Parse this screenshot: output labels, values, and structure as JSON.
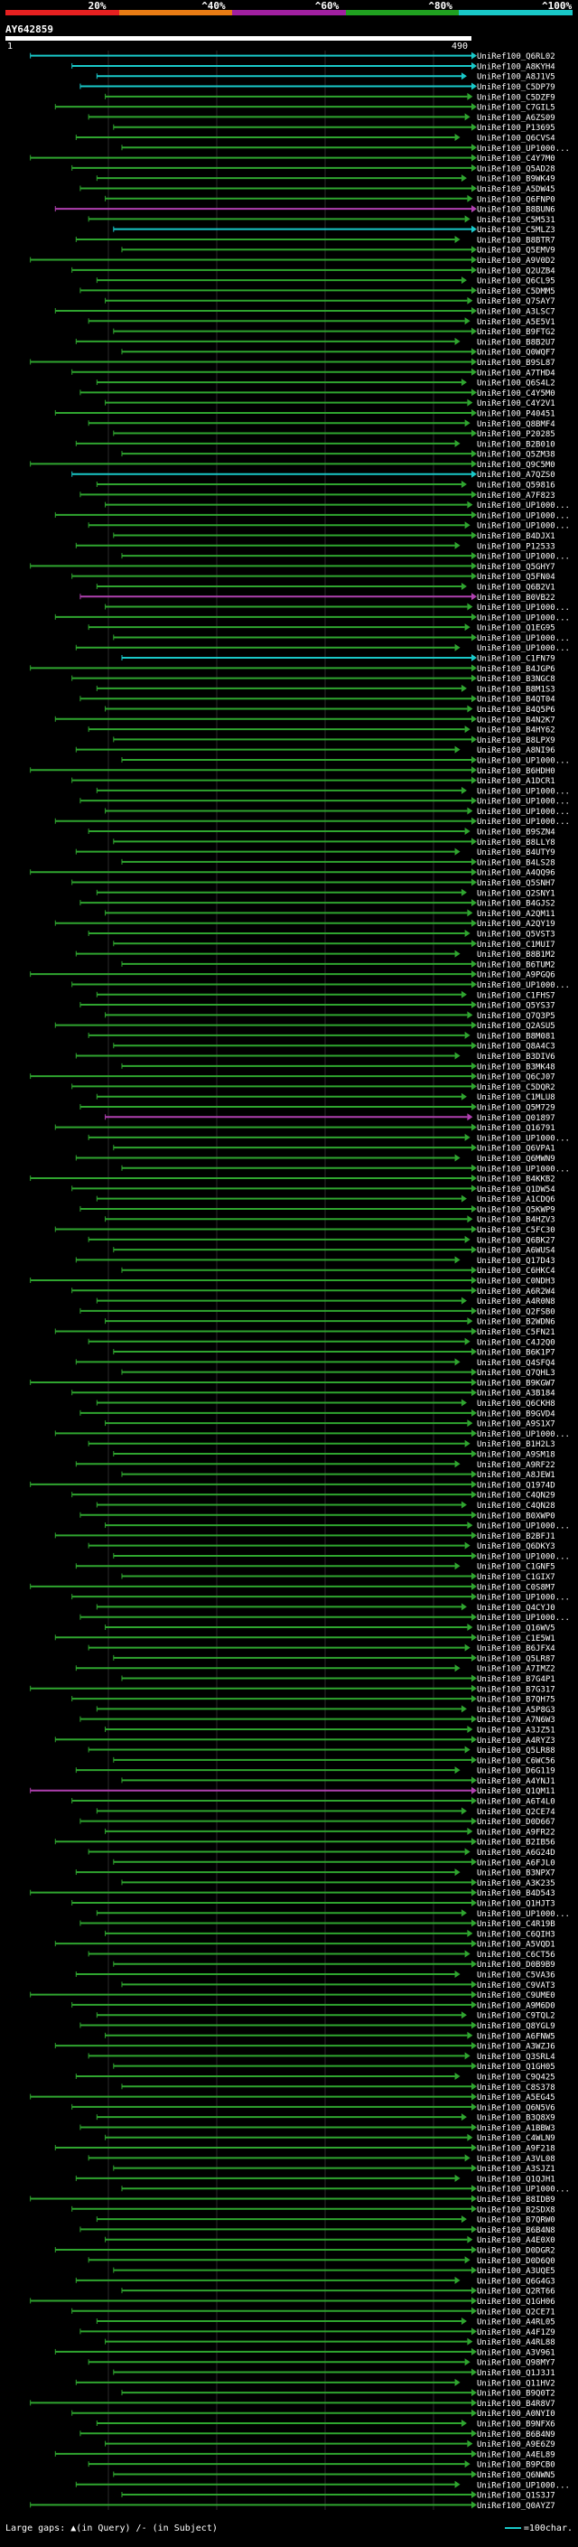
{
  "scale_bar": {
    "segments": [
      {
        "label": "20%",
        "color": "#e62020"
      },
      {
        "label": "^40%",
        "color": "#e87c14"
      },
      {
        "label": "^60%",
        "color": "#a020a0"
      },
      {
        "label": "^80%",
        "color": "#20a020"
      },
      {
        "label": "^100%",
        "color": "#19c8c8"
      }
    ]
  },
  "query": {
    "id": "AY642859",
    "start": "1",
    "end": "490"
  },
  "colors": {
    "cyan": "#19c8c8",
    "green": "#2fa52f",
    "magenta": "#b040b0",
    "label": "#ffffff",
    "gridline": "#2a2a2a"
  },
  "hits": [
    {
      "label": "UniRef100_Q6RL02",
      "c": "cyan"
    },
    {
      "label": "UniRef100_A8KYH4",
      "c": "cyan"
    },
    {
      "label": "UniRef100_A8J1V5",
      "c": "cyan"
    },
    {
      "label": "UniRef100_C5DP79",
      "c": "cyan"
    },
    {
      "label": "UniRef100_C5DZF9",
      "c": "green"
    },
    {
      "label": "UniRef100_C7GIL5",
      "c": "green"
    },
    {
      "label": "UniRef100_A6ZS09",
      "c": "green"
    },
    {
      "label": "UniRef100_P13695",
      "c": "green"
    },
    {
      "label": "UniRef100_Q6CVS4",
      "c": "green"
    },
    {
      "label": "UniRef100_UP1000...",
      "c": "green"
    },
    {
      "label": "UniRef100_C4Y7M0",
      "c": "green"
    },
    {
      "label": "UniRef100_Q5AD28",
      "c": "green"
    },
    {
      "label": "UniRef100_B9WK49",
      "c": "green"
    },
    {
      "label": "UniRef100_A5DW45",
      "c": "green"
    },
    {
      "label": "UniRef100_Q6FNP0",
      "c": "green"
    },
    {
      "label": "UniRef100_B8BUN6",
      "c": "magenta"
    },
    {
      "label": "UniRef100_C5M531",
      "c": "green"
    },
    {
      "label": "UniRef100_C5MLZ3",
      "c": "cyan"
    },
    {
      "label": "UniRef100_B8BTR7",
      "c": "green"
    },
    {
      "label": "UniRef100_Q5EMV9",
      "c": "green"
    },
    {
      "label": "UniRef100_A9V0D2",
      "c": "green"
    },
    {
      "label": "UniRef100_Q2UZB4",
      "c": "green"
    },
    {
      "label": "UniRef100_Q6CL95",
      "c": "green"
    },
    {
      "label": "UniRef100_C5DMM5",
      "c": "green"
    },
    {
      "label": "UniRef100_Q7SAY7",
      "c": "green"
    },
    {
      "label": "UniRef100_A3LSC7",
      "c": "green"
    },
    {
      "label": "UniRef100_A5E5V1",
      "c": "green"
    },
    {
      "label": "UniRef100_B9FTG2",
      "c": "green"
    },
    {
      "label": "UniRef100_B8B2U7",
      "c": "green"
    },
    {
      "label": "UniRef100_Q0WQF7",
      "c": "green"
    },
    {
      "label": "UniRef100_B9SL87",
      "c": "green"
    },
    {
      "label": "UniRef100_A7THD4",
      "c": "green"
    },
    {
      "label": "UniRef100_Q6S4L2",
      "c": "green"
    },
    {
      "label": "UniRef100_C4Y5M0",
      "c": "green"
    },
    {
      "label": "UniRef100_C4Y2V1",
      "c": "green"
    },
    {
      "label": "UniRef100_P40451",
      "c": "green"
    },
    {
      "label": "UniRef100_Q8BMF4",
      "c": "green"
    },
    {
      "label": "UniRef100_P20285",
      "c": "green"
    },
    {
      "label": "UniRef100_B2B010",
      "c": "green"
    },
    {
      "label": "UniRef100_Q5ZM38",
      "c": "green"
    },
    {
      "label": "UniRef100_Q9C5M0",
      "c": "green"
    },
    {
      "label": "UniRef100_A7QZS0",
      "c": "cyan"
    },
    {
      "label": "UniRef100_Q59816",
      "c": "green"
    },
    {
      "label": "UniRef100_A7F823",
      "c": "green"
    },
    {
      "label": "UniRef100_UP1000...",
      "c": "green"
    },
    {
      "label": "UniRef100_UP1000...",
      "c": "green"
    },
    {
      "label": "UniRef100_UP1000...",
      "c": "green"
    },
    {
      "label": "UniRef100_B4DJX1",
      "c": "green"
    },
    {
      "label": "UniRef100_P12533",
      "c": "green"
    },
    {
      "label": "UniRef100_UP1000...",
      "c": "green"
    },
    {
      "label": "UniRef100_Q5GHY7",
      "c": "green"
    },
    {
      "label": "UniRef100_Q5FN04",
      "c": "green"
    },
    {
      "label": "UniRef100_Q6B2V1",
      "c": "green"
    },
    {
      "label": "UniRef100_B0VB22",
      "c": "magenta"
    },
    {
      "label": "UniRef100_UP1000...",
      "c": "green"
    },
    {
      "label": "UniRef100_UP1000...",
      "c": "green"
    },
    {
      "label": "UniRef100_Q1EG95",
      "c": "green"
    },
    {
      "label": "UniRef100_UP1000...",
      "c": "green"
    },
    {
      "label": "UniRef100_UP1000...",
      "c": "green"
    },
    {
      "label": "UniRef100_C1FN79",
      "c": "cyan"
    },
    {
      "label": "UniRef100_B4JGP6",
      "c": "green"
    },
    {
      "label": "UniRef100_B3NGC8",
      "c": "green"
    },
    {
      "label": "UniRef100_B8M1S3",
      "c": "green"
    },
    {
      "label": "UniRef100_B4QT04",
      "c": "green"
    },
    {
      "label": "UniRef100_B4Q5P6",
      "c": "green"
    },
    {
      "label": "UniRef100_B4N2K7",
      "c": "green"
    },
    {
      "label": "UniRef100_B4HY62",
      "c": "green"
    },
    {
      "label": "UniRef100_B8LPX9",
      "c": "green"
    },
    {
      "label": "UniRef100_A8NI96",
      "c": "green"
    },
    {
      "label": "UniRef100_UP1000...",
      "c": "green"
    },
    {
      "label": "UniRef100_B6HDH0",
      "c": "green"
    },
    {
      "label": "UniRef100_A1DCR1",
      "c": "green"
    },
    {
      "label": "UniRef100_UP1000...",
      "c": "green"
    },
    {
      "label": "UniRef100_UP1000...",
      "c": "green"
    },
    {
      "label": "UniRef100_UP1000...",
      "c": "green"
    },
    {
      "label": "UniRef100_UP1000...",
      "c": "green"
    },
    {
      "label": "UniRef100_B9SZN4",
      "c": "green"
    },
    {
      "label": "UniRef100_B8LLY8",
      "c": "green"
    },
    {
      "label": "UniRef100_B4UTY9",
      "c": "green"
    },
    {
      "label": "UniRef100_B4LS28",
      "c": "green"
    },
    {
      "label": "UniRef100_A4QQ96",
      "c": "green"
    },
    {
      "label": "UniRef100_Q5SNH7",
      "c": "green"
    },
    {
      "label": "UniRef100_Q2SNY1",
      "c": "green"
    },
    {
      "label": "UniRef100_B4GJS2",
      "c": "green"
    },
    {
      "label": "UniRef100_A2QM11",
      "c": "green"
    },
    {
      "label": "UniRef100_A2QY19",
      "c": "green"
    },
    {
      "label": "UniRef100_Q5VST3",
      "c": "green"
    },
    {
      "label": "UniRef100_C1MUI7",
      "c": "green"
    },
    {
      "label": "UniRef100_B8B1M2",
      "c": "green"
    },
    {
      "label": "UniRef100_B6TUM2",
      "c": "green"
    },
    {
      "label": "UniRef100_A9PGQ6",
      "c": "green"
    },
    {
      "label": "UniRef100_UP1000...",
      "c": "green"
    },
    {
      "label": "UniRef100_C1FHS7",
      "c": "green"
    },
    {
      "label": "UniRef100_Q5YS37",
      "c": "green"
    },
    {
      "label": "UniRef100_Q7Q3P5",
      "c": "green"
    },
    {
      "label": "UniRef100_Q2ASU5",
      "c": "green"
    },
    {
      "label": "UniRef100_B8M081",
      "c": "green"
    },
    {
      "label": "UniRef100_Q8A4C3",
      "c": "green"
    },
    {
      "label": "UniRef100_B3DIV6",
      "c": "green"
    },
    {
      "label": "UniRef100_B3MK48",
      "c": "green"
    },
    {
      "label": "UniRef100_Q6CJ07",
      "c": "green"
    },
    {
      "label": "UniRef100_C5DQR2",
      "c": "green"
    },
    {
      "label": "UniRef100_C1MLU8",
      "c": "green"
    },
    {
      "label": "UniRef100_Q5M729",
      "c": "green"
    },
    {
      "label": "UniRef100_Q01897",
      "c": "magenta"
    },
    {
      "label": "UniRef100_Q16791",
      "c": "green"
    },
    {
      "label": "UniRef100_UP1000...",
      "c": "green"
    },
    {
      "label": "UniRef100_Q6VPA1",
      "c": "green"
    },
    {
      "label": "UniRef100_Q6MWN9",
      "c": "green"
    },
    {
      "label": "UniRef100_UP1000...",
      "c": "green"
    },
    {
      "label": "UniRef100_B4KKB2",
      "c": "green"
    },
    {
      "label": "UniRef100_Q1DW54",
      "c": "green"
    },
    {
      "label": "UniRef100_A1CDQ6",
      "c": "green"
    },
    {
      "label": "UniRef100_Q5KWP9",
      "c": "green"
    },
    {
      "label": "UniRef100_B4HZV3",
      "c": "green"
    },
    {
      "label": "UniRef100_C5FC30",
      "c": "green"
    },
    {
      "label": "UniRef100_Q6BK27",
      "c": "green"
    },
    {
      "label": "UniRef100_A6WUS4",
      "c": "green"
    },
    {
      "label": "UniRef100_Q17D43",
      "c": "green"
    },
    {
      "label": "UniRef100_C6HKC4",
      "c": "green"
    },
    {
      "label": "UniRef100_C0NDH3",
      "c": "green"
    },
    {
      "label": "UniRef100_A6R2W4",
      "c": "green"
    },
    {
      "label": "UniRef100_A4R0N8",
      "c": "green"
    },
    {
      "label": "UniRef100_Q2FSB0",
      "c": "green"
    },
    {
      "label": "UniRef100_B2WDN6",
      "c": "green"
    },
    {
      "label": "UniRef100_C5FN21",
      "c": "green"
    },
    {
      "label": "UniRef100_C4J2Q0",
      "c": "green"
    },
    {
      "label": "UniRef100_B6K1P7",
      "c": "green"
    },
    {
      "label": "UniRef100_Q4SFQ4",
      "c": "green"
    },
    {
      "label": "UniRef100_Q7QHL3",
      "c": "green"
    },
    {
      "label": "UniRef100_B9KGW7",
      "c": "green"
    },
    {
      "label": "UniRef100_A3B184",
      "c": "green"
    },
    {
      "label": "UniRef100_Q6CKH8",
      "c": "green"
    },
    {
      "label": "UniRef100_B9GVD4",
      "c": "green"
    },
    {
      "label": "UniRef100_A9S1X7",
      "c": "green"
    },
    {
      "label": "UniRef100_UP1000...",
      "c": "green"
    },
    {
      "label": "UniRef100_B1H2L3",
      "c": "green"
    },
    {
      "label": "UniRef100_A9SM18",
      "c": "green"
    },
    {
      "label": "UniRef100_A9RF22",
      "c": "green"
    },
    {
      "label": "UniRef100_A8JEW1",
      "c": "green"
    },
    {
      "label": "UniRef100_Q1974D",
      "c": "green"
    },
    {
      "label": "UniRef100_C4QN29",
      "c": "green"
    },
    {
      "label": "UniRef100_C4QN28",
      "c": "green"
    },
    {
      "label": "UniRef100_B0XWP0",
      "c": "green"
    },
    {
      "label": "UniRef100_UP1000...",
      "c": "green"
    },
    {
      "label": "UniRef100_B2BFJ1",
      "c": "green"
    },
    {
      "label": "UniRef100_Q6DKY3",
      "c": "green"
    },
    {
      "label": "UniRef100_UP1000...",
      "c": "green"
    },
    {
      "label": "UniRef100_C1GNF5",
      "c": "green"
    },
    {
      "label": "UniRef100_C1GIX7",
      "c": "green"
    },
    {
      "label": "UniRef100_C0S8M7",
      "c": "green"
    },
    {
      "label": "UniRef100_UP1000...",
      "c": "green"
    },
    {
      "label": "UniRef100_Q4CYJ0",
      "c": "green"
    },
    {
      "label": "UniRef100_UP1000...",
      "c": "green"
    },
    {
      "label": "UniRef100_Q16WV5",
      "c": "green"
    },
    {
      "label": "UniRef100_C1E5W1",
      "c": "green"
    },
    {
      "label": "UniRef100_B6JFX4",
      "c": "green"
    },
    {
      "label": "UniRef100_Q5LR87",
      "c": "green"
    },
    {
      "label": "UniRef100_A7IMZ2",
      "c": "green"
    },
    {
      "label": "UniRef100_B7G4P1",
      "c": "green"
    },
    {
      "label": "UniRef100_B7G317",
      "c": "green"
    },
    {
      "label": "UniRef100_B7QH75",
      "c": "green"
    },
    {
      "label": "UniRef100_A5P8G3",
      "c": "green"
    },
    {
      "label": "UniRef100_A7N6W3",
      "c": "green"
    },
    {
      "label": "UniRef100_A3JZ51",
      "c": "green"
    },
    {
      "label": "UniRef100_A4RYZ3",
      "c": "green"
    },
    {
      "label": "UniRef100_Q5LR88",
      "c": "green"
    },
    {
      "label": "UniRef100_C6WC56",
      "c": "green"
    },
    {
      "label": "UniRef100_D6G119",
      "c": "green"
    },
    {
      "label": "UniRef100_A4YNJ1",
      "c": "green"
    },
    {
      "label": "UniRef100_Q1QM11",
      "c": "magenta"
    },
    {
      "label": "UniRef100_A6T4L0",
      "c": "green"
    },
    {
      "label": "UniRef100_Q2CE74",
      "c": "green"
    },
    {
      "label": "UniRef100_D0D667",
      "c": "green"
    },
    {
      "label": "UniRef100_A9FR22",
      "c": "green"
    },
    {
      "label": "UniRef100_B2IB56",
      "c": "green"
    },
    {
      "label": "UniRef100_A6G24D",
      "c": "green"
    },
    {
      "label": "UniRef100_A6FJL0",
      "c": "green"
    },
    {
      "label": "UniRef100_B3NPX7",
      "c": "green"
    },
    {
      "label": "UniRef100_A3K235",
      "c": "green"
    },
    {
      "label": "UniRef100_B4D543",
      "c": "green"
    },
    {
      "label": "UniRef100_Q1HJT3",
      "c": "green"
    },
    {
      "label": "UniRef100_UP1000...",
      "c": "green"
    },
    {
      "label": "UniRef100_C4R19B",
      "c": "green"
    },
    {
      "label": "UniRef100_C6QIH3",
      "c": "green"
    },
    {
      "label": "UniRef100_A5VQD1",
      "c": "green"
    },
    {
      "label": "UniRef100_C6CT56",
      "c": "green"
    },
    {
      "label": "UniRef100_D0B9B9",
      "c": "green"
    },
    {
      "label": "UniRef100_C5VA36",
      "c": "green"
    },
    {
      "label": "UniRef100_C9VAT3",
      "c": "green"
    },
    {
      "label": "UniRef100_C9UME0",
      "c": "green"
    },
    {
      "label": "UniRef100_A9M6D0",
      "c": "green"
    },
    {
      "label": "UniRef100_C9TQL2",
      "c": "green"
    },
    {
      "label": "UniRef100_Q8YGL9",
      "c": "green"
    },
    {
      "label": "UniRef100_A6FNW5",
      "c": "green"
    },
    {
      "label": "UniRef100_A3WZJ6",
      "c": "green"
    },
    {
      "label": "UniRef100_Q3SRL4",
      "c": "green"
    },
    {
      "label": "UniRef100_Q1GH05",
      "c": "green"
    },
    {
      "label": "UniRef100_C9Q425",
      "c": "green"
    },
    {
      "label": "UniRef100_C8S378",
      "c": "green"
    },
    {
      "label": "UniRef100_A5EG45",
      "c": "green"
    },
    {
      "label": "UniRef100_Q6N5V6",
      "c": "green"
    },
    {
      "label": "UniRef100_B3Q8X9",
      "c": "green"
    },
    {
      "label": "UniRef100_A1BBW3",
      "c": "green"
    },
    {
      "label": "UniRef100_C4WLN9",
      "c": "green"
    },
    {
      "label": "UniRef100_A9F218",
      "c": "green"
    },
    {
      "label": "UniRef100_A3VL08",
      "c": "green"
    },
    {
      "label": "UniRef100_A3SJZ1",
      "c": "green"
    },
    {
      "label": "UniRef100_Q1QJH1",
      "c": "green"
    },
    {
      "label": "UniRef100_UP1000...",
      "c": "green"
    },
    {
      "label": "UniRef100_B8IDB9",
      "c": "green"
    },
    {
      "label": "UniRef100_B2SDX8",
      "c": "green"
    },
    {
      "label": "UniRef100_B7QRW0",
      "c": "green"
    },
    {
      "label": "UniRef100_B6B4N8",
      "c": "green"
    },
    {
      "label": "UniRef100_A4E0X0",
      "c": "green"
    },
    {
      "label": "UniRef100_D0DGR2",
      "c": "green"
    },
    {
      "label": "UniRef100_D0D6Q0",
      "c": "green"
    },
    {
      "label": "UniRef100_A3UQE5",
      "c": "green"
    },
    {
      "label": "UniRef100_Q6G4G3",
      "c": "green"
    },
    {
      "label": "UniRef100_Q2RT66",
      "c": "green"
    },
    {
      "label": "UniRef100_Q1GH06",
      "c": "green"
    },
    {
      "label": "UniRef100_Q2CE71",
      "c": "green"
    },
    {
      "label": "UniRef100_A4RL05",
      "c": "green"
    },
    {
      "label": "UniRef100_A4F1Z9",
      "c": "green"
    },
    {
      "label": "UniRef100_A4RL88",
      "c": "green"
    },
    {
      "label": "UniRef100_A3V961",
      "c": "green"
    },
    {
      "label": "UniRef100_Q98MY7",
      "c": "green"
    },
    {
      "label": "UniRef100_Q1J3J1",
      "c": "green"
    },
    {
      "label": "UniRef100_Q11HV2",
      "c": "green"
    },
    {
      "label": "UniRef100_B9Q0T2",
      "c": "green"
    },
    {
      "label": "UniRef100_B4R8V7",
      "c": "green"
    },
    {
      "label": "UniRef100_A0NYI0",
      "c": "green"
    },
    {
      "label": "UniRef100_B9NFX6",
      "c": "green"
    },
    {
      "label": "UniRef100_B6B4N9",
      "c": "green"
    },
    {
      "label": "UniRef100_A9E6Z9",
      "c": "green"
    },
    {
      "label": "UniRef100_A4EL89",
      "c": "green"
    },
    {
      "label": "UniRef100_B9PCB0",
      "c": "green"
    },
    {
      "label": "UniRef100_Q6NWN5",
      "c": "green"
    },
    {
      "label": "UniRef100_UP1000...",
      "c": "green"
    },
    {
      "label": "UniRef100_Q1S3J7",
      "c": "green"
    },
    {
      "label": "UniRef100_Q0AYZ7",
      "c": "green"
    }
  ],
  "legend": {
    "large_gaps_label": "Large gaps:",
    "query_gap": "(in Query)",
    "subject_gap": "/- (in Subject)",
    "scale_label": "=100char."
  }
}
